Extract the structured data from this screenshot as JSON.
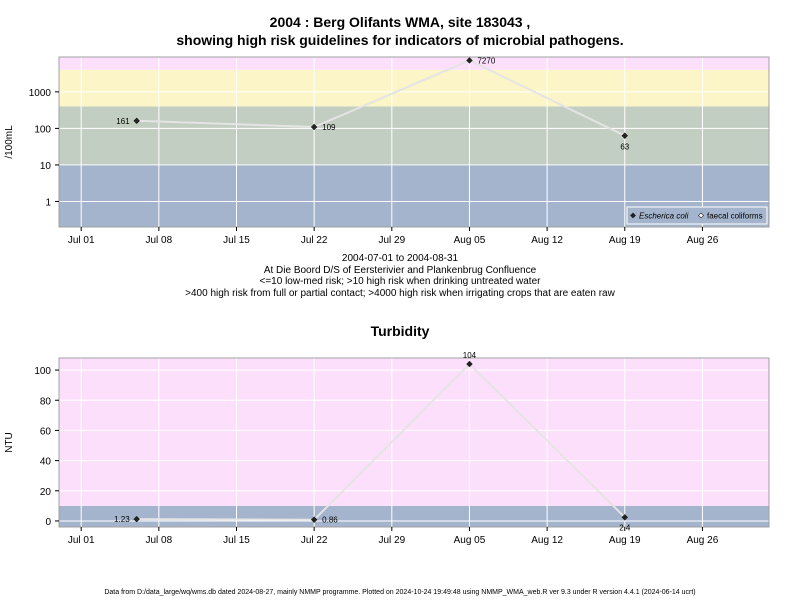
{
  "page": {
    "title_line1": "2004 : Berg Olifants WMA, site 183043 ,",
    "title_line2": "showing high risk guidelines for indicators of microbial pathogens.",
    "date_range": "2004-07-01 to 2004-08-31",
    "location": "At Die Boord D/S of Eersterivier and Plankenbrug Confluence",
    "note_1": "<=10 low-med risk; >10 high risk when drinking untreated water",
    "note_2": ">400 high risk from full or partial contact; >4000 high risk when irrigating crops that are eaten raw",
    "turbidity_title": "Turbidity",
    "footer": "Data from D:/data_large/wq/wms.db dated 2024-08-27, mainly NMMP programme. Plotted on 2024-10-24 19:49:48 using NMMP_WMA_web.R ver 9.3 under R version 4.4.1 (2024-06-14 ucrt)"
  },
  "chart_data": [
    {
      "type": "line",
      "ylabel": "/100mL",
      "y_scale": "log",
      "ylim": [
        0.2,
        9000
      ],
      "y_ticks": [
        1,
        10,
        100,
        1000
      ],
      "y_tick_labels": [
        "1",
        "10",
        "100",
        "1000"
      ],
      "x_ticks": [
        "2004-07-01",
        "2004-07-08",
        "2004-07-15",
        "2004-07-22",
        "2004-07-29",
        "2004-08-05",
        "2004-08-12",
        "2004-08-19",
        "2004-08-26"
      ],
      "x_tick_labels": [
        "Jul 01",
        "Jul 08",
        "Jul 15",
        "Jul 22",
        "Jul 29",
        "Aug 05",
        "Aug 12",
        "Aug 19",
        "Aug 26"
      ],
      "xlim": [
        "2004-06-29",
        "2004-09-01"
      ],
      "bands": [
        {
          "from": 0.2,
          "to": 10,
          "color": "#a3b4cc"
        },
        {
          "from": 10,
          "to": 400,
          "color": "#c3cec2"
        },
        {
          "from": 400,
          "to": 4000,
          "color": "#fbf5c8"
        },
        {
          "from": 4000,
          "to": 9000,
          "color": "#fce0fb"
        }
      ],
      "series": [
        {
          "name": "Escherica coli",
          "marker": "filled-diamond",
          "points": [
            {
              "x": "2004-07-06",
              "y": 161,
              "label": "161"
            },
            {
              "x": "2004-07-22",
              "y": 109,
              "label": "109"
            },
            {
              "x": "2004-08-05",
              "y": 7270,
              "label": "7270"
            },
            {
              "x": "2004-08-19",
              "y": 63,
              "label": "63"
            }
          ]
        },
        {
          "name": "faecal coliforms",
          "marker": "open-diamond",
          "points": []
        }
      ],
      "legend": "bottom-right"
    },
    {
      "type": "line",
      "title": "Turbidity",
      "ylabel": "NTU",
      "ylim": [
        -4,
        108
      ],
      "y_ticks": [
        0,
        20,
        40,
        60,
        80,
        100
      ],
      "y_tick_labels": [
        "0",
        "20",
        "40",
        "60",
        "80",
        "100"
      ],
      "x_ticks": [
        "2004-07-01",
        "2004-07-08",
        "2004-07-15",
        "2004-07-22",
        "2004-07-29",
        "2004-08-05",
        "2004-08-12",
        "2004-08-19",
        "2004-08-26"
      ],
      "x_tick_labels": [
        "Jul 01",
        "Jul 08",
        "Jul 15",
        "Jul 22",
        "Jul 29",
        "Aug 05",
        "Aug 12",
        "Aug 19",
        "Aug 26"
      ],
      "xlim": [
        "2004-06-29",
        "2004-09-01"
      ],
      "bands": [
        {
          "from": -4,
          "to": 10,
          "color": "#a3b4cc"
        },
        {
          "from": 10,
          "to": 108,
          "color": "#fce0fb"
        }
      ],
      "series": [
        {
          "name": "",
          "marker": "filled-diamond",
          "points": [
            {
              "x": "2004-07-06",
              "y": 1.23,
              "label": "1.23"
            },
            {
              "x": "2004-07-22",
              "y": 0.86,
              "label": "0.86"
            },
            {
              "x": "2004-08-05",
              "y": 104,
              "label": "104"
            },
            {
              "x": "2004-08-19",
              "y": 2.4,
              "label": "2.4"
            }
          ]
        }
      ]
    }
  ]
}
